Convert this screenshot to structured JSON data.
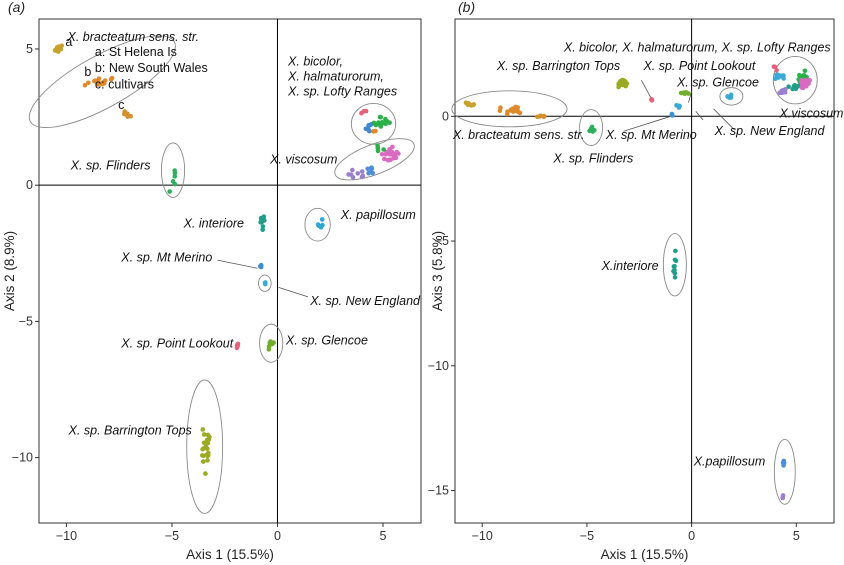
{
  "chart_data": [
    {
      "type": "scatter",
      "panel_label": "(a)",
      "xlabel": "Axis 1 (15.5%)",
      "ylabel": "Axis 2 (8.9%)",
      "xlim": [
        -11.3,
        6.8
      ],
      "ylim": [
        -12.4,
        6.1
      ],
      "xticks": [
        -10,
        -5,
        0,
        5
      ],
      "yticks": [
        5,
        0,
        -5,
        -10
      ],
      "zero_lines": true,
      "groups": [
        {
          "id": "bract",
          "color": "#c8a12d",
          "center": [
            -10.4,
            5.0
          ],
          "spread": [
            0.35,
            0.2
          ],
          "n": 10
        },
        {
          "id": "bract_b",
          "color": "#e0892b",
          "center": [
            -8.5,
            3.8
          ],
          "spread": [
            0.8,
            0.3
          ],
          "n": 16
        },
        {
          "id": "bract_c",
          "color": "#d4902c",
          "center": [
            -7.2,
            2.6
          ],
          "spread": [
            0.4,
            0.2
          ],
          "n": 6
        },
        {
          "id": "flinders",
          "color": "#2fae5e",
          "center": [
            -4.9,
            0.2
          ],
          "spread": [
            0.25,
            0.5
          ],
          "n": 6
        },
        {
          "id": "interiore",
          "color": "#1f9e89",
          "center": [
            -0.7,
            -1.4
          ],
          "spread": [
            0.15,
            0.3
          ],
          "n": 8
        },
        {
          "id": "mtmerino",
          "color": "#3b8fd4",
          "center": [
            -0.8,
            -3.0
          ],
          "spread": [
            0.1,
            0.1
          ],
          "n": 3
        },
        {
          "id": "newengland",
          "color": "#3aa8d8",
          "center": [
            -0.6,
            -3.6
          ],
          "spread": [
            0.1,
            0.1
          ],
          "n": 3
        },
        {
          "id": "papillosum",
          "color": "#2fa6d6",
          "center": [
            2.0,
            -1.4
          ],
          "spread": [
            0.3,
            0.3
          ],
          "n": 5
        },
        {
          "id": "glencoe",
          "color": "#6fae2e",
          "center": [
            -0.3,
            -5.9
          ],
          "spread": [
            0.2,
            0.4
          ],
          "n": 8
        },
        {
          "id": "pointlookout",
          "color": "#e8607a",
          "center": [
            -1.9,
            -5.9
          ],
          "spread": [
            0.05,
            0.15
          ],
          "n": 4
        },
        {
          "id": "barrington",
          "color": "#9aaa22",
          "center": [
            -3.4,
            -9.6
          ],
          "spread": [
            0.3,
            1.2
          ],
          "n": 24
        },
        {
          "id": "bicolor_green",
          "color": "#2bb04a",
          "center": [
            4.9,
            2.3
          ],
          "spread": [
            0.6,
            0.3
          ],
          "n": 16
        },
        {
          "id": "bicolor_blue",
          "color": "#3f86d6",
          "center": [
            4.3,
            2.1
          ],
          "spread": [
            0.3,
            0.3
          ],
          "n": 6
        },
        {
          "id": "bicolor_pink",
          "color": "#e5607a",
          "center": [
            4.1,
            2.7
          ],
          "spread": [
            0.2,
            0.1
          ],
          "n": 3
        },
        {
          "id": "bicolor_orange",
          "color": "#e0892b",
          "center": [
            4.6,
            2.0
          ],
          "spread": [
            0.1,
            0.1
          ],
          "n": 2
        },
        {
          "id": "viscosum_pink",
          "color": "#d96bc1",
          "center": [
            5.4,
            1.1
          ],
          "spread": [
            0.6,
            0.4
          ],
          "n": 22
        },
        {
          "id": "viscosum_purple",
          "color": "#9b7fcf",
          "center": [
            3.8,
            0.4
          ],
          "spread": [
            0.5,
            0.2
          ],
          "n": 8
        },
        {
          "id": "viscosum_blue",
          "color": "#4d8fd6",
          "center": [
            4.4,
            0.6
          ],
          "spread": [
            0.4,
            0.3
          ],
          "n": 6
        },
        {
          "id": "viscosum_green",
          "color": "#2bb04a",
          "center": [
            4.8,
            1.4
          ],
          "spread": [
            0.3,
            0.2
          ],
          "n": 4
        }
      ],
      "ellipses": [
        {
          "center": [
            -8.3,
            3.8
          ],
          "rx": 3.9,
          "ry": 0.95,
          "angle_deg": 29
        },
        {
          "center": [
            -4.95,
            0.55
          ],
          "rx": 0.55,
          "ry": 1.0,
          "angle_deg": 0
        },
        {
          "center": [
            4.55,
            2.25
          ],
          "rx": 1.05,
          "ry": 0.75,
          "angle_deg": 0
        },
        {
          "center": [
            4.6,
            0.95
          ],
          "rx": 2.0,
          "ry": 0.55,
          "angle_deg": 21
        },
        {
          "center": [
            1.9,
            -1.45
          ],
          "rx": 0.6,
          "ry": 0.6,
          "angle_deg": 0
        },
        {
          "center": [
            -0.6,
            -3.6
          ],
          "rx": 0.3,
          "ry": 0.3,
          "angle_deg": 0
        },
        {
          "center": [
            -0.3,
            -5.8
          ],
          "rx": 0.55,
          "ry": 0.7,
          "angle_deg": 0
        },
        {
          "center": [
            -3.45,
            -9.6
          ],
          "rx": 0.85,
          "ry": 2.45,
          "angle_deg": 0
        }
      ],
      "annotations": [
        {
          "text": "X. bracteatum sens. str.",
          "italic": true,
          "at": [
            -9.95,
            5.3
          ]
        },
        {
          "text": "a",
          "italic": false,
          "at": [
            -10.05,
            5.1
          ]
        },
        {
          "text": "b",
          "italic": false,
          "at": [
            -9.15,
            4.0
          ]
        },
        {
          "text": "c",
          "italic": false,
          "at": [
            -7.55,
            2.8
          ]
        },
        {
          "text": "a: St Helena Is",
          "italic": false,
          "at": [
            -8.65,
            4.75
          ]
        },
        {
          "text": "b: New South Wales",
          "italic": false,
          "at": [
            -8.65,
            4.15
          ]
        },
        {
          "text": "c: cultivars",
          "italic": false,
          "at": [
            -8.65,
            3.55
          ]
        },
        {
          "text": "X. bicolor,",
          "italic": true,
          "at": [
            0.5,
            4.4
          ]
        },
        {
          "text": "X. halmaturorum,",
          "italic": true,
          "at": [
            0.5,
            3.85
          ]
        },
        {
          "text": "X. sp. Lofty Ranges",
          "italic": true,
          "at": [
            0.5,
            3.3
          ]
        },
        {
          "text": "X. sp. Flinders",
          "italic": true,
          "at": [
            -9.8,
            0.58
          ]
        },
        {
          "text": "X. viscosum",
          "italic": true,
          "at": [
            -0.35,
            0.8
          ]
        },
        {
          "text": "X. interiore",
          "italic": true,
          "at": [
            -4.45,
            -1.55
          ]
        },
        {
          "text": "X. papillosum",
          "italic": true,
          "at": [
            3.0,
            -1.25
          ]
        },
        {
          "text": "X. sp. Mt Merino",
          "italic": true,
          "at": [
            -7.4,
            -2.8
          ]
        },
        {
          "text": "X. sp. New England",
          "italic": true,
          "at": [
            1.55,
            -4.4
          ]
        },
        {
          "text": "X. sp. Point Lookout",
          "italic": true,
          "at": [
            -7.4,
            -5.95
          ]
        },
        {
          "text": "X. sp. Glencoe",
          "italic": true,
          "at": [
            0.4,
            -5.85
          ]
        },
        {
          "text": "X. sp. Barrington Tops",
          "italic": true,
          "at": [
            -9.9,
            -9.15
          ]
        }
      ],
      "leaders": [
        {
          "from": [
            -2.85,
            -2.75
          ],
          "to": [
            -0.95,
            -3.05
          ]
        },
        {
          "from": [
            0.05,
            -3.75
          ],
          "to": [
            1.45,
            -4.1
          ]
        }
      ]
    },
    {
      "type": "scatter",
      "panel_label": "(b)",
      "xlabel": "Axis 1 (15.5%)",
      "ylabel": "Axis 3 (5.8%)",
      "xlim": [
        -11.3,
        6.8
      ],
      "ylim": [
        -16.3,
        3.9
      ],
      "xticks": [
        -10,
        -5,
        0,
        5
      ],
      "yticks": [
        0,
        -5,
        -10,
        -15
      ],
      "zero_lines": true,
      "groups": [
        {
          "id": "bract_a",
          "color": "#c8a12d",
          "center": [
            -10.6,
            0.45
          ],
          "spread": [
            0.3,
            0.15
          ],
          "n": 8
        },
        {
          "id": "bract_b",
          "color": "#e0892b",
          "center": [
            -8.6,
            0.25
          ],
          "spread": [
            1.0,
            0.2
          ],
          "n": 18
        },
        {
          "id": "bract_c",
          "color": "#d4902c",
          "center": [
            -7.2,
            0.0
          ],
          "spread": [
            0.3,
            0.1
          ],
          "n": 5
        },
        {
          "id": "barrington",
          "color": "#9aaa22",
          "center": [
            -3.3,
            1.3
          ],
          "spread": [
            0.35,
            0.25
          ],
          "n": 22
        },
        {
          "id": "flinders",
          "color": "#2fae5e",
          "center": [
            -4.8,
            -0.45
          ],
          "spread": [
            0.25,
            0.3
          ],
          "n": 6
        },
        {
          "id": "pointlookout",
          "color": "#e8607a",
          "center": [
            -1.9,
            0.65
          ],
          "spread": [
            0.05,
            0.1
          ],
          "n": 4
        },
        {
          "id": "mtmerino",
          "color": "#3b8fd4",
          "center": [
            -0.9,
            0.05
          ],
          "spread": [
            0.1,
            0.2
          ],
          "n": 3
        },
        {
          "id": "glencoe",
          "color": "#6fae2e",
          "center": [
            -0.35,
            0.9
          ],
          "spread": [
            0.25,
            0.15
          ],
          "n": 8
        },
        {
          "id": "glencoe_blue",
          "color": "#3aa8d8",
          "center": [
            -0.6,
            0.45
          ],
          "spread": [
            0.15,
            0.15
          ],
          "n": 4
        },
        {
          "id": "newengland",
          "color": "#3aa8d8",
          "center": [
            1.9,
            0.8
          ],
          "spread": [
            0.3,
            0.1
          ],
          "n": 4
        },
        {
          "id": "interiore",
          "color": "#1f9e89",
          "center": [
            -0.8,
            -6.0
          ],
          "spread": [
            0.12,
            0.7
          ],
          "n": 9
        },
        {
          "id": "papillosum",
          "color": "#4d8fd6",
          "center": [
            4.4,
            -13.9
          ],
          "spread": [
            0.1,
            0.4
          ],
          "n": 5
        },
        {
          "id": "papillosum_purple",
          "color": "#9b7fcf",
          "center": [
            4.35,
            -15.3
          ],
          "spread": [
            0.05,
            0.15
          ],
          "n": 3
        },
        {
          "id": "lofty_blue",
          "color": "#3aa8d8",
          "center": [
            4.2,
            1.6
          ],
          "spread": [
            0.4,
            0.3
          ],
          "n": 12
        },
        {
          "id": "lofty_green",
          "color": "#2bb04a",
          "center": [
            5.3,
            1.5
          ],
          "spread": [
            0.4,
            0.4
          ],
          "n": 14
        },
        {
          "id": "lofty_teal",
          "color": "#1f9e89",
          "center": [
            4.8,
            1.2
          ],
          "spread": [
            0.4,
            0.3
          ],
          "n": 8
        },
        {
          "id": "viscosum_pink",
          "color": "#d96bc1",
          "center": [
            5.4,
            1.3
          ],
          "spread": [
            0.45,
            0.25
          ],
          "n": 18
        },
        {
          "id": "viscosum_purple",
          "color": "#9b7fcf",
          "center": [
            4.3,
            1.0
          ],
          "spread": [
            0.3,
            0.2
          ],
          "n": 8
        },
        {
          "id": "lofty_pink",
          "color": "#e8607a",
          "center": [
            4.0,
            1.9
          ],
          "spread": [
            0.2,
            0.15
          ],
          "n": 3
        }
      ],
      "ellipses": [
        {
          "center": [
            -8.7,
            0.3
          ],
          "rx": 2.75,
          "ry": 0.72,
          "angle_deg": 0
        },
        {
          "center": [
            -4.8,
            -0.45
          ],
          "rx": 0.55,
          "ry": 0.72,
          "angle_deg": 0
        },
        {
          "center": [
            -0.8,
            -5.95
          ],
          "rx": 0.55,
          "ry": 1.25,
          "angle_deg": 0
        },
        {
          "center": [
            1.9,
            0.8
          ],
          "rx": 0.55,
          "ry": 0.35,
          "angle_deg": 0
        },
        {
          "center": [
            4.95,
            1.45
          ],
          "rx": 1.05,
          "ry": 0.95,
          "angle_deg": 0
        },
        {
          "center": [
            4.45,
            -14.25
          ],
          "rx": 0.5,
          "ry": 1.3,
          "angle_deg": 0
        }
      ],
      "annotations": [
        {
          "text": "X.  bicolor, X. halmaturorum, X. sp. Lofty Ranges",
          "italic": true,
          "at": [
            -6.1,
            2.6
          ]
        },
        {
          "text": "X. sp. Barrington Tops",
          "italic": true,
          "at": [
            -9.3,
            1.85
          ]
        },
        {
          "text": "X. sp. Point Lookout",
          "italic": true,
          "at": [
            -2.3,
            1.85
          ]
        },
        {
          "text": "X. sp. Glencoe",
          "italic": true,
          "at": [
            -0.7,
            1.2
          ]
        },
        {
          "text": "X. bracteatum sens. str.",
          "italic": true,
          "at": [
            -11.4,
            -0.9
          ]
        },
        {
          "text": "X. sp. Mt Merino",
          "italic": true,
          "at": [
            -4.1,
            -0.9
          ]
        },
        {
          "text": "X. sp. Flinders",
          "italic": true,
          "at": [
            -6.6,
            -1.85
          ]
        },
        {
          "text": "X. sp. New England",
          "italic": true,
          "at": [
            1.1,
            -0.75
          ]
        },
        {
          "text": "X.viscosum",
          "italic": true,
          "at": [
            4.2,
            -0.05
          ]
        },
        {
          "text": "X.interiore",
          "italic": true,
          "at": [
            -4.3,
            -6.15
          ]
        },
        {
          "text": "X.papillosum",
          "italic": true,
          "at": [
            0.1,
            -14.0
          ]
        }
      ],
      "leaders": [
        {
          "from": [
            -2.4,
            1.45
          ],
          "to": [
            -1.95,
            0.75
          ]
        },
        {
          "from": [
            0.0,
            1.0
          ],
          "to": [
            -0.15,
            0.55
          ]
        },
        {
          "from": [
            -3.25,
            -0.6
          ],
          "to": [
            -1.0,
            0.0
          ]
        },
        {
          "from": [
            0.55,
            -0.15
          ],
          "to": [
            0.2,
            0.2
          ]
        },
        {
          "from": [
            2.05,
            -0.55
          ],
          "to": [
            1.05,
            0.3
          ]
        }
      ]
    }
  ]
}
